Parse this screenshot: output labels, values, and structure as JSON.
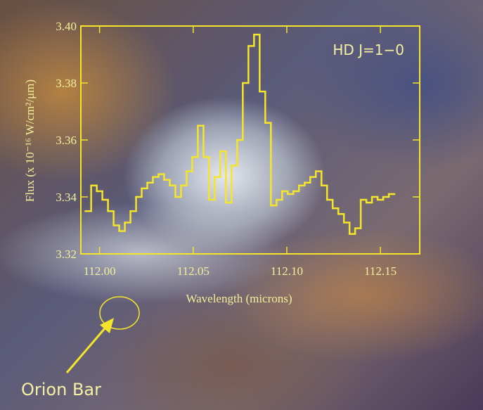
{
  "chart_data": {
    "type": "step",
    "annotation": "HD J=1−0",
    "x_label": "Wavelength (microns)",
    "y_label": "Flux (x 10⁻¹⁶ W/cm²/μm)",
    "marker_label": "Orion Bar",
    "xlim": [
      111.99,
      112.171
    ],
    "ylim": [
      3.32,
      3.4
    ],
    "xticks": [
      {
        "value": 112.0,
        "label": "112.00"
      },
      112.05,
      {
        "value": 112.1,
        "label": "112.10"
      },
      112.15
    ],
    "yticks": [
      3.32,
      3.34,
      3.36,
      3.38,
      {
        "value": 3.4,
        "label": "3.40"
      }
    ],
    "series": [
      {
        "color": "#f5e52a",
        "x": [
          111.994,
          111.997,
          112.0,
          112.003,
          112.006,
          112.009,
          112.012,
          112.015,
          112.018,
          112.021,
          112.024,
          112.027,
          112.03,
          112.033,
          112.036,
          112.039,
          112.042,
          112.045,
          112.048,
          112.051,
          112.054,
          112.057,
          112.06,
          112.063,
          112.066,
          112.069,
          112.072,
          112.075,
          112.078,
          112.081,
          112.084,
          112.087,
          112.09,
          112.093,
          112.096,
          112.099,
          112.102,
          112.105,
          112.108,
          112.111,
          112.114,
          112.117,
          112.12,
          112.123,
          112.126,
          112.129,
          112.132,
          112.135,
          112.138,
          112.141,
          112.144,
          112.147,
          112.15,
          112.153,
          112.156
        ],
        "values": [
          3.335,
          3.344,
          3.342,
          3.339,
          3.335,
          3.33,
          3.328,
          3.331,
          3.335,
          3.34,
          3.343,
          3.345,
          3.347,
          3.348,
          3.346,
          3.344,
          3.34,
          3.344,
          3.349,
          3.354,
          3.365,
          3.354,
          3.339,
          3.347,
          3.356,
          3.338,
          3.351,
          3.36,
          3.38,
          3.393,
          3.397,
          3.377,
          3.366,
          3.337,
          3.339,
          3.342,
          3.341,
          3.342,
          3.344,
          3.345,
          3.347,
          3.349,
          3.344,
          3.339,
          3.336,
          3.334,
          3.331,
          3.327,
          3.329,
          3.339,
          3.338,
          3.34,
          3.339,
          3.34,
          3.341
        ]
      }
    ]
  }
}
